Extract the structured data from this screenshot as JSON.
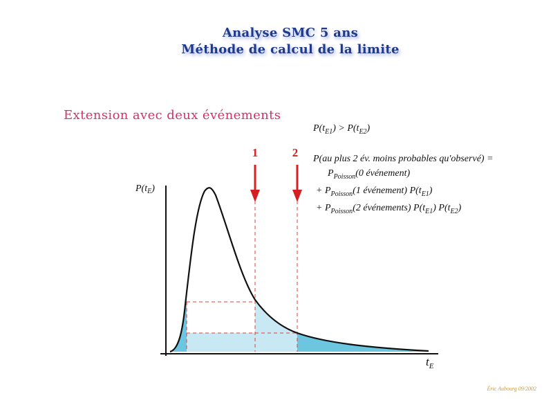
{
  "title": {
    "line1": "Analyse SMC 5 ans",
    "line2": "Méthode de calcul de la limite"
  },
  "subtitle": "Extension avec deux événements",
  "formulas": {
    "ordering": {
      "p1": "P(t",
      "sub1": "E1",
      "mid": ") > P(t",
      "sub2": "E2",
      "end": ")"
    },
    "main_lhs": "P(au plus 2 év. moins probables qu'observé)  =",
    "term0": {
      "p": "P",
      "sub": "Poisson",
      "text": "(0 événement)"
    },
    "term1": {
      "prefix": "+  ",
      "p": "P",
      "sub": "Poisson",
      "text": "(1 événement) P(t",
      "sub2": "E1",
      "end": ")"
    },
    "term2": {
      "prefix": "+  ",
      "p": "P",
      "sub": "Poisson",
      "text": "(2 événements) P(t",
      "sub2": "E1",
      "mid": ") P(t",
      "sub3": "E2",
      "end": ")"
    }
  },
  "axis": {
    "y_label_main": "P(t",
    "y_label_sub": "E",
    "y_label_end": ")",
    "x_label_main": "t",
    "x_label_sub": "E"
  },
  "markers": [
    {
      "label": "1"
    },
    {
      "label": "2"
    }
  ],
  "credit": "Éric Aubourg 09/2002",
  "colors": {
    "title": "#1f3a8a",
    "subtitle": "#d62f6a",
    "marker": "#d42020",
    "fill_light": "#c8e9f3",
    "fill_dark": "#6cc6e0",
    "curve": "#111111",
    "credit": "#c79a3c"
  }
}
